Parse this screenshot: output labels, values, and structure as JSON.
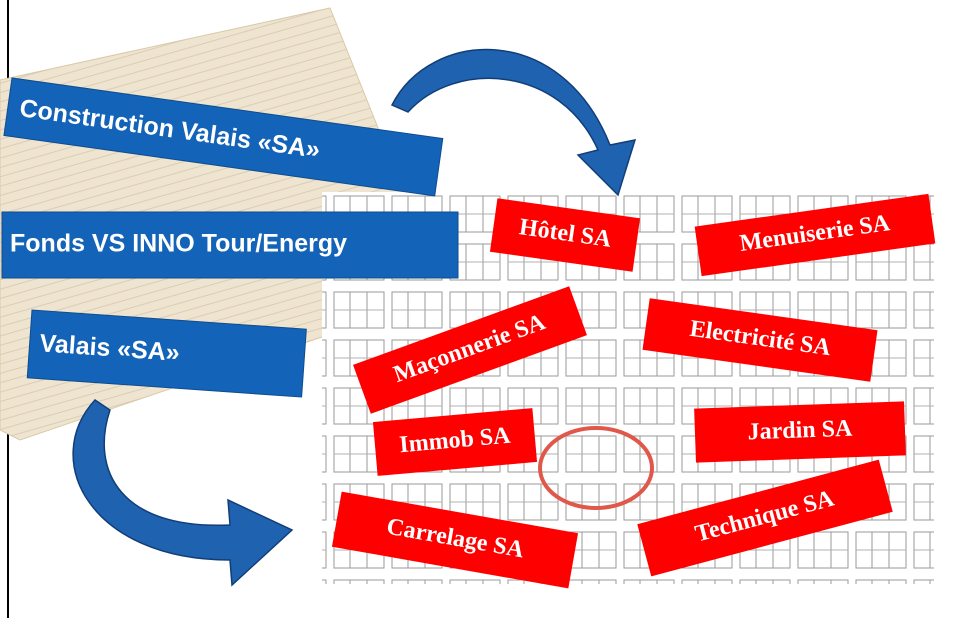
{
  "blue_labels": [
    "Construction Valais «SA»",
    "Fonds VS INNO Tour/Energy",
    "Valais «SA»"
  ],
  "red_labels": [
    "Hôtel SA",
    "Menuiserie SA",
    "Maçonnerie SA",
    "Electricité SA",
    "Immob SA",
    "Jardin SA",
    "Carrelage SA",
    "Technique SA"
  ]
}
